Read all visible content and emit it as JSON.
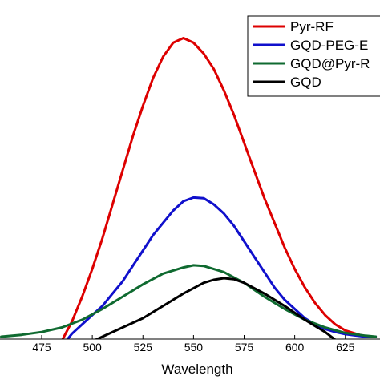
{
  "chart_data": {
    "type": "line",
    "title": "",
    "xlabel": "Wavelength",
    "ylabel": "",
    "xlim": [
      455,
      640
    ],
    "ylim": [
      0,
      1.0
    ],
    "x_ticks": [
      "475",
      "500",
      "525",
      "550",
      "575",
      "600",
      "625"
    ],
    "grid": false,
    "legend_position": "top-right",
    "series": [
      {
        "name": "Pyr-RF",
        "color": "#dd0000",
        "x": [
          482,
          486,
          490,
          495,
          500,
          505,
          510,
          515,
          520,
          525,
          530,
          535,
          540,
          545,
          550,
          555,
          560,
          565,
          570,
          575,
          580,
          585,
          590,
          595,
          600,
          605,
          610,
          615,
          620,
          625,
          630,
          635,
          640
        ],
        "y": [
          -0.05,
          0.0,
          0.05,
          0.13,
          0.22,
          0.32,
          0.43,
          0.54,
          0.65,
          0.75,
          0.84,
          0.91,
          0.955,
          0.97,
          0.955,
          0.92,
          0.87,
          0.8,
          0.72,
          0.63,
          0.54,
          0.45,
          0.37,
          0.29,
          0.22,
          0.16,
          0.11,
          0.07,
          0.04,
          0.02,
          0.01,
          0.0,
          0.0
        ]
      },
      {
        "name": "GQD-PEG-E",
        "color": "#1010cc",
        "x": [
          485,
          490,
          495,
          500,
          505,
          510,
          515,
          520,
          525,
          530,
          535,
          540,
          545,
          550,
          555,
          560,
          565,
          570,
          575,
          580,
          585,
          590,
          595,
          600,
          605,
          610,
          615,
          620,
          625,
          630,
          635,
          640
        ],
        "y": [
          -0.03,
          0.01,
          0.04,
          0.07,
          0.1,
          0.14,
          0.18,
          0.23,
          0.28,
          0.33,
          0.37,
          0.41,
          0.44,
          0.452,
          0.45,
          0.43,
          0.4,
          0.36,
          0.31,
          0.26,
          0.21,
          0.16,
          0.12,
          0.09,
          0.06,
          0.04,
          0.025,
          0.015,
          0.008,
          0.004,
          0.0,
          0.0
        ]
      },
      {
        "name": "GQD@Pyr-R",
        "color": "#0f6a30",
        "x": [
          455,
          465,
          475,
          485,
          495,
          505,
          515,
          525,
          535,
          545,
          550,
          555,
          565,
          575,
          585,
          595,
          605,
          615,
          625,
          635,
          640
        ],
        "y": [
          0.0,
          0.006,
          0.015,
          0.03,
          0.055,
          0.09,
          0.13,
          0.17,
          0.205,
          0.225,
          0.232,
          0.23,
          0.21,
          0.175,
          0.13,
          0.09,
          0.055,
          0.03,
          0.012,
          0.003,
          0.0
        ]
      },
      {
        "name": "GQD",
        "color": "#000000",
        "x": [
          495,
          505,
          515,
          525,
          535,
          545,
          555,
          560,
          565,
          570,
          575,
          585,
          595,
          605,
          615,
          620
        ],
        "y": [
          -0.03,
          0.0,
          0.03,
          0.06,
          0.1,
          0.14,
          0.175,
          0.185,
          0.19,
          0.187,
          0.175,
          0.14,
          0.1,
          0.055,
          0.015,
          -0.01
        ]
      }
    ]
  }
}
